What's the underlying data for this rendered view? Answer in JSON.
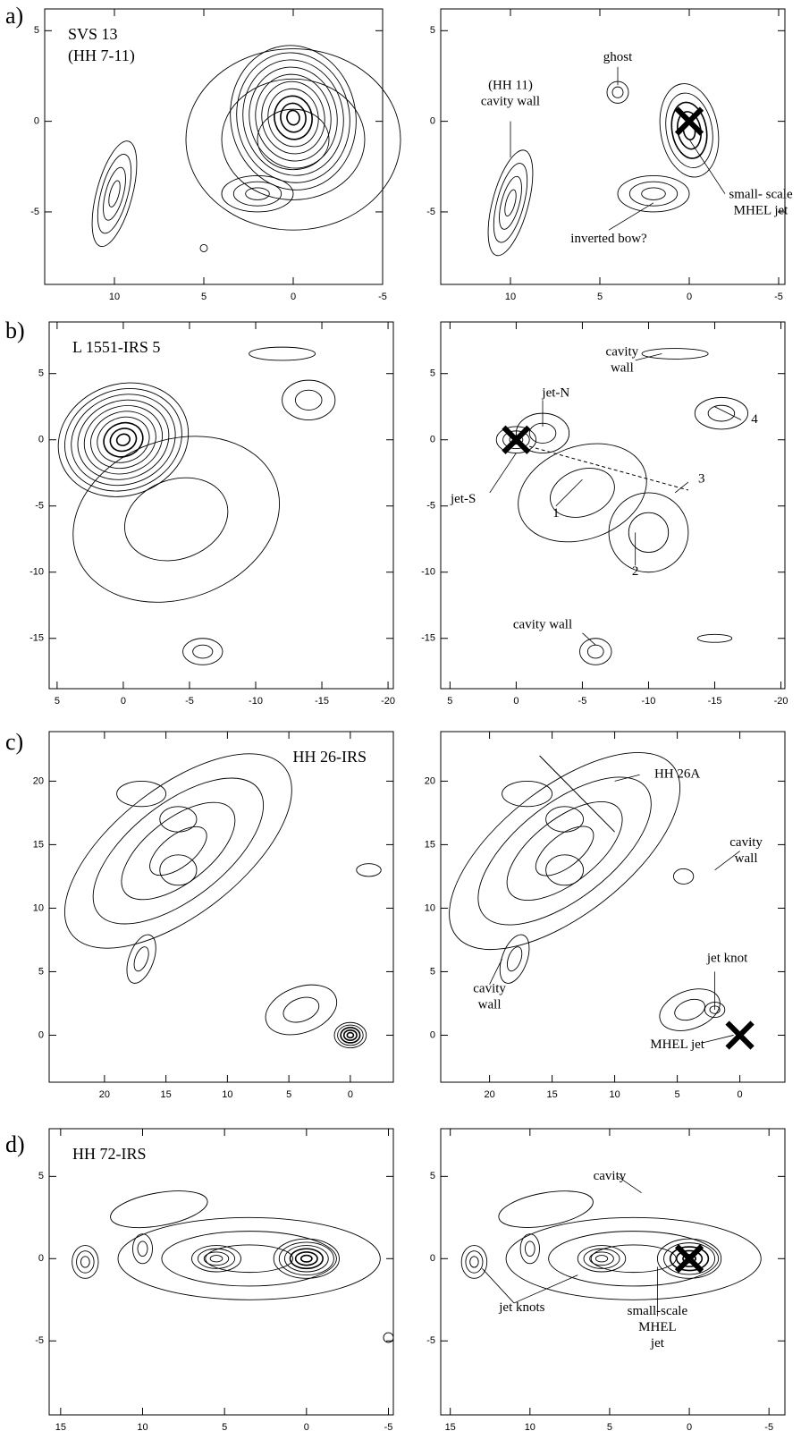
{
  "rows": [
    {
      "label": "a)",
      "left": {
        "title": [
          "SVS 13",
          "(HH 7-11)"
        ],
        "xlim": [
          13.9,
          -5
        ],
        "ylim": [
          -9,
          6.2
        ],
        "xticks": [
          10,
          5,
          0,
          -5
        ],
        "yticks": [
          5,
          0,
          -5
        ]
      },
      "right": {
        "annotations": [
          [
            "ghost"
          ],
          [
            "(HH 11)",
            "cavity wall"
          ],
          [
            "small- scale",
            "MHEL jet"
          ],
          [
            "inverted bow?"
          ]
        ],
        "xlim": [
          13.9,
          -5.35
        ],
        "ylim": [
          -9,
          6.2
        ],
        "xticks": [
          10,
          5,
          0,
          -5
        ],
        "yticks": [
          5,
          0,
          -5
        ]
      }
    },
    {
      "label": "b)",
      "left": {
        "title": [
          "L 1551-IRS 5"
        ],
        "xlim": [
          5.6,
          -20.4
        ],
        "ylim": [
          -18.8,
          8.9
        ],
        "xticks": [
          5,
          0,
          -5,
          -10,
          -15,
          -20
        ],
        "yticks": [
          5,
          0,
          -5,
          -10,
          -15
        ]
      },
      "right": {
        "annotations": [
          [
            "cavity",
            "wall"
          ],
          [
            "jet-N"
          ],
          [
            "jet-S"
          ],
          [
            "1"
          ],
          [
            "2"
          ],
          [
            "3"
          ],
          [
            "4"
          ],
          [
            "cavity wall"
          ]
        ],
        "xlim": [
          5.7,
          -20.3
        ],
        "ylim": [
          -18.8,
          8.9
        ],
        "xticks": [
          5,
          0,
          -5,
          -10,
          -15,
          -20
        ],
        "yticks": [
          5,
          0,
          -5,
          -10,
          -15
        ]
      }
    },
    {
      "label": "c)",
      "left": {
        "title": [
          "HH 26-IRS"
        ],
        "xlim": [
          24.5,
          -3.5
        ],
        "ylim": [
          -3.7,
          23.9
        ],
        "xticks": [
          20,
          15,
          10,
          5,
          0
        ],
        "yticks": [
          20,
          15,
          10,
          5,
          0
        ]
      },
      "right": {
        "annotations": [
          [
            "HH 26A"
          ],
          [
            "cavity",
            "wall"
          ],
          [
            "cavity",
            "wall"
          ],
          [
            "jet knot"
          ],
          [
            "MHEL jet"
          ]
        ],
        "xlim": [
          23.9,
          -3.6
        ],
        "ylim": [
          -3.7,
          23.9
        ],
        "xticks": [
          20,
          15,
          10,
          5,
          0
        ],
        "yticks": [
          20,
          15,
          10,
          5,
          0
        ]
      }
    },
    {
      "label": "d)",
      "left": {
        "title": [
          "HH 72-IRS"
        ],
        "xlim": [
          15.7,
          -5.3
        ],
        "ylim": [
          -9.5,
          7.9
        ],
        "xticks": [
          15,
          10,
          5,
          0,
          -5
        ],
        "yticks": [
          5,
          0,
          -5
        ]
      },
      "right": {
        "annotations": [
          [
            "cavity"
          ],
          [
            "jet knots"
          ],
          [
            "small-scale",
            "MHEL",
            "jet"
          ]
        ],
        "xlim": [
          15.6,
          -6
        ],
        "ylim": [
          -9.5,
          7.9
        ],
        "xticks": [
          15,
          10,
          5,
          0,
          -5
        ],
        "yticks": [
          5,
          0,
          -5
        ]
      }
    }
  ]
}
